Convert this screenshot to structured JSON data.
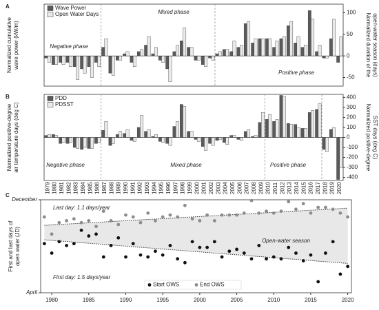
{
  "chart_data": [
    {
      "type": "bar",
      "panel_label": "A",
      "ylabel": [
        "Normalized cumulative",
        "wave power (kW/m)"
      ],
      "y2label": [
        "Normalized duration of the",
        "open-water season (days)"
      ],
      "ylim": [
        -7,
        12
      ],
      "y2lim": [
        -70,
        120
      ],
      "y2ticks": [
        100,
        50,
        0,
        -50
      ],
      "legend": "upper left",
      "annotations": [
        "Negative phase",
        "Mixed phase",
        "Positive phase"
      ],
      "phase_breaks": [
        1986.5,
        2002.5
      ],
      "series": [
        {
          "name": "Wave Power",
          "color": "#5a5a5a",
          "values": [
            -0.5,
            -2,
            -1.5,
            -1.5,
            -2.5,
            -3,
            -2.5,
            -1.5,
            2,
            -4,
            -1,
            0.5,
            -1.5,
            1,
            2.5,
            0.5,
            -1,
            -3,
            1,
            3.5,
            2,
            -1,
            -2,
            -0.5,
            0.5,
            1.5,
            1,
            2,
            7.5,
            3,
            4,
            4,
            2,
            4,
            7,
            3,
            2,
            10.5,
            1,
            -0.5,
            4,
            -1.5
          ]
        },
        {
          "name": "Open Water Days",
          "color": "#eaeaea",
          "axis": "y2",
          "values": [
            -15,
            -20,
            -20,
            -25,
            -55,
            -40,
            -50,
            -25,
            40,
            -45,
            -10,
            10,
            -25,
            15,
            45,
            20,
            -15,
            -60,
            25,
            65,
            20,
            -10,
            -25,
            -10,
            10,
            15,
            35,
            25,
            80,
            40,
            40,
            40,
            35,
            45,
            80,
            45,
            25,
            85,
            25,
            -5,
            85,
            45
          ]
        }
      ]
    },
    {
      "type": "bar",
      "panel_label": "B",
      "ylabel": [
        "Normalized positive-degree",
        "air temperature days (deg C)"
      ],
      "y2label": [
        "Normalized positive-degree",
        "SST days (deg C)"
      ],
      "ylim": [
        -430,
        430
      ],
      "y2lim": [
        -430,
        430
      ],
      "y2ticks": [
        400,
        300,
        200,
        100,
        0,
        -100,
        -200,
        -300,
        -400
      ],
      "legend": "upper left",
      "annotations": [
        "Negative phase",
        "Mixed phase",
        "Positive phase"
      ],
      "phase_breaks": [
        1986.5,
        2009.5,
        2017.5
      ],
      "categories": [
        "1979",
        "1980",
        "1981",
        "1982",
        "1983",
        "1984",
        "1985",
        "1986",
        "1987",
        "1988",
        "1989",
        "1990",
        "1991",
        "1992",
        "1993",
        "1994",
        "1995",
        "1996",
        "1997",
        "1998",
        "1999",
        "2000",
        "2001",
        "2002",
        "2003",
        "2004",
        "2005",
        "2006",
        "2007",
        "2008",
        "2009",
        "2010",
        "2011",
        "2012",
        "2013",
        "2014",
        "2015",
        "2016",
        "2017",
        "2018",
        "2019",
        "2020"
      ],
      "series": [
        {
          "name": "PDD",
          "color": "#5a5a5a",
          "values": [
            20,
            30,
            -60,
            -60,
            -100,
            -120,
            -110,
            -60,
            70,
            -80,
            30,
            40,
            -30,
            100,
            60,
            10,
            -40,
            -60,
            110,
            330,
            60,
            -20,
            -90,
            -60,
            -30,
            -50,
            20,
            -20,
            60,
            10,
            150,
            180,
            160,
            420,
            140,
            130,
            90,
            250,
            280,
            -120,
            80,
            -420
          ]
        },
        {
          "name": "PDSST",
          "color": "#eaeaea",
          "axis": "y2",
          "values": [
            30,
            20,
            -50,
            -50,
            -110,
            -100,
            -110,
            -50,
            160,
            -60,
            60,
            80,
            -40,
            220,
            80,
            30,
            -50,
            -80,
            160,
            310,
            60,
            -40,
            -130,
            -80,
            -20,
            -70,
            20,
            -30,
            80,
            20,
            250,
            230,
            180,
            410,
            130,
            100,
            90,
            270,
            340,
            -140,
            100,
            -300
          ]
        }
      ]
    },
    {
      "type": "scatter",
      "panel_label": "C",
      "ylabel": [
        "First and last days of",
        "open water (JD)"
      ],
      "xlim": [
        1978.5,
        2020.5
      ],
      "xticks": [
        1980,
        1985,
        1990,
        1995,
        2000,
        2005,
        2010,
        2015,
        2020
      ],
      "ylim": [
        91,
        335
      ],
      "yticks": [
        {
          "value": 335,
          "label": "December"
        },
        {
          "value": 91,
          "label": "April"
        }
      ],
      "legend": "lower center",
      "annotations": [
        "Open-water season"
      ],
      "band_color": "#e8e8e8",
      "trends": [
        {
          "label": "Last day: 1.1 days/year",
          "x": [
            1979,
            2020
          ],
          "values": [
            268,
            313
          ]
        },
        {
          "label": "First day: 1.5 days/year",
          "x": [
            1979,
            2020
          ],
          "values": [
            230,
            168
          ]
        }
      ],
      "x": [
        1979,
        1980,
        1981,
        1982,
        1983,
        1984,
        1985,
        1986,
        1987,
        1988,
        1989,
        1990,
        1991,
        1992,
        1993,
        1994,
        1995,
        1996,
        1997,
        1998,
        1999,
        2000,
        2001,
        2002,
        2003,
        2004,
        2005,
        2006,
        2007,
        2008,
        2009,
        2010,
        2011,
        2012,
        2013,
        2014,
        2015,
        2016,
        2017,
        2018,
        2019,
        2020
      ],
      "series": [
        {
          "name": "Start OWS",
          "color": "#111111",
          "values": [
            220,
            195,
            225,
            215,
            220,
            255,
            240,
            245,
            185,
            215,
            235,
            185,
            220,
            190,
            185,
            200,
            190,
            215,
            180,
            170,
            225,
            210,
            210,
            225,
            185,
            200,
            205,
            195,
            180,
            215,
            180,
            185,
            180,
            210,
            195,
            175,
            190,
            120,
            195,
            225,
            140,
            160
          ]
        },
        {
          "name": "End OWS",
          "color": "#8c8c8c",
          "values": [
            290,
            245,
            275,
            280,
            285,
            275,
            280,
            265,
            305,
            280,
            270,
            295,
            290,
            275,
            300,
            280,
            290,
            295,
            290,
            320,
            285,
            280,
            295,
            280,
            295,
            295,
            295,
            300,
            333,
            300,
            305,
            300,
            305,
            330,
            310,
            325,
            300,
            315,
            315,
            310,
            300,
            290
          ]
        }
      ]
    }
  ]
}
